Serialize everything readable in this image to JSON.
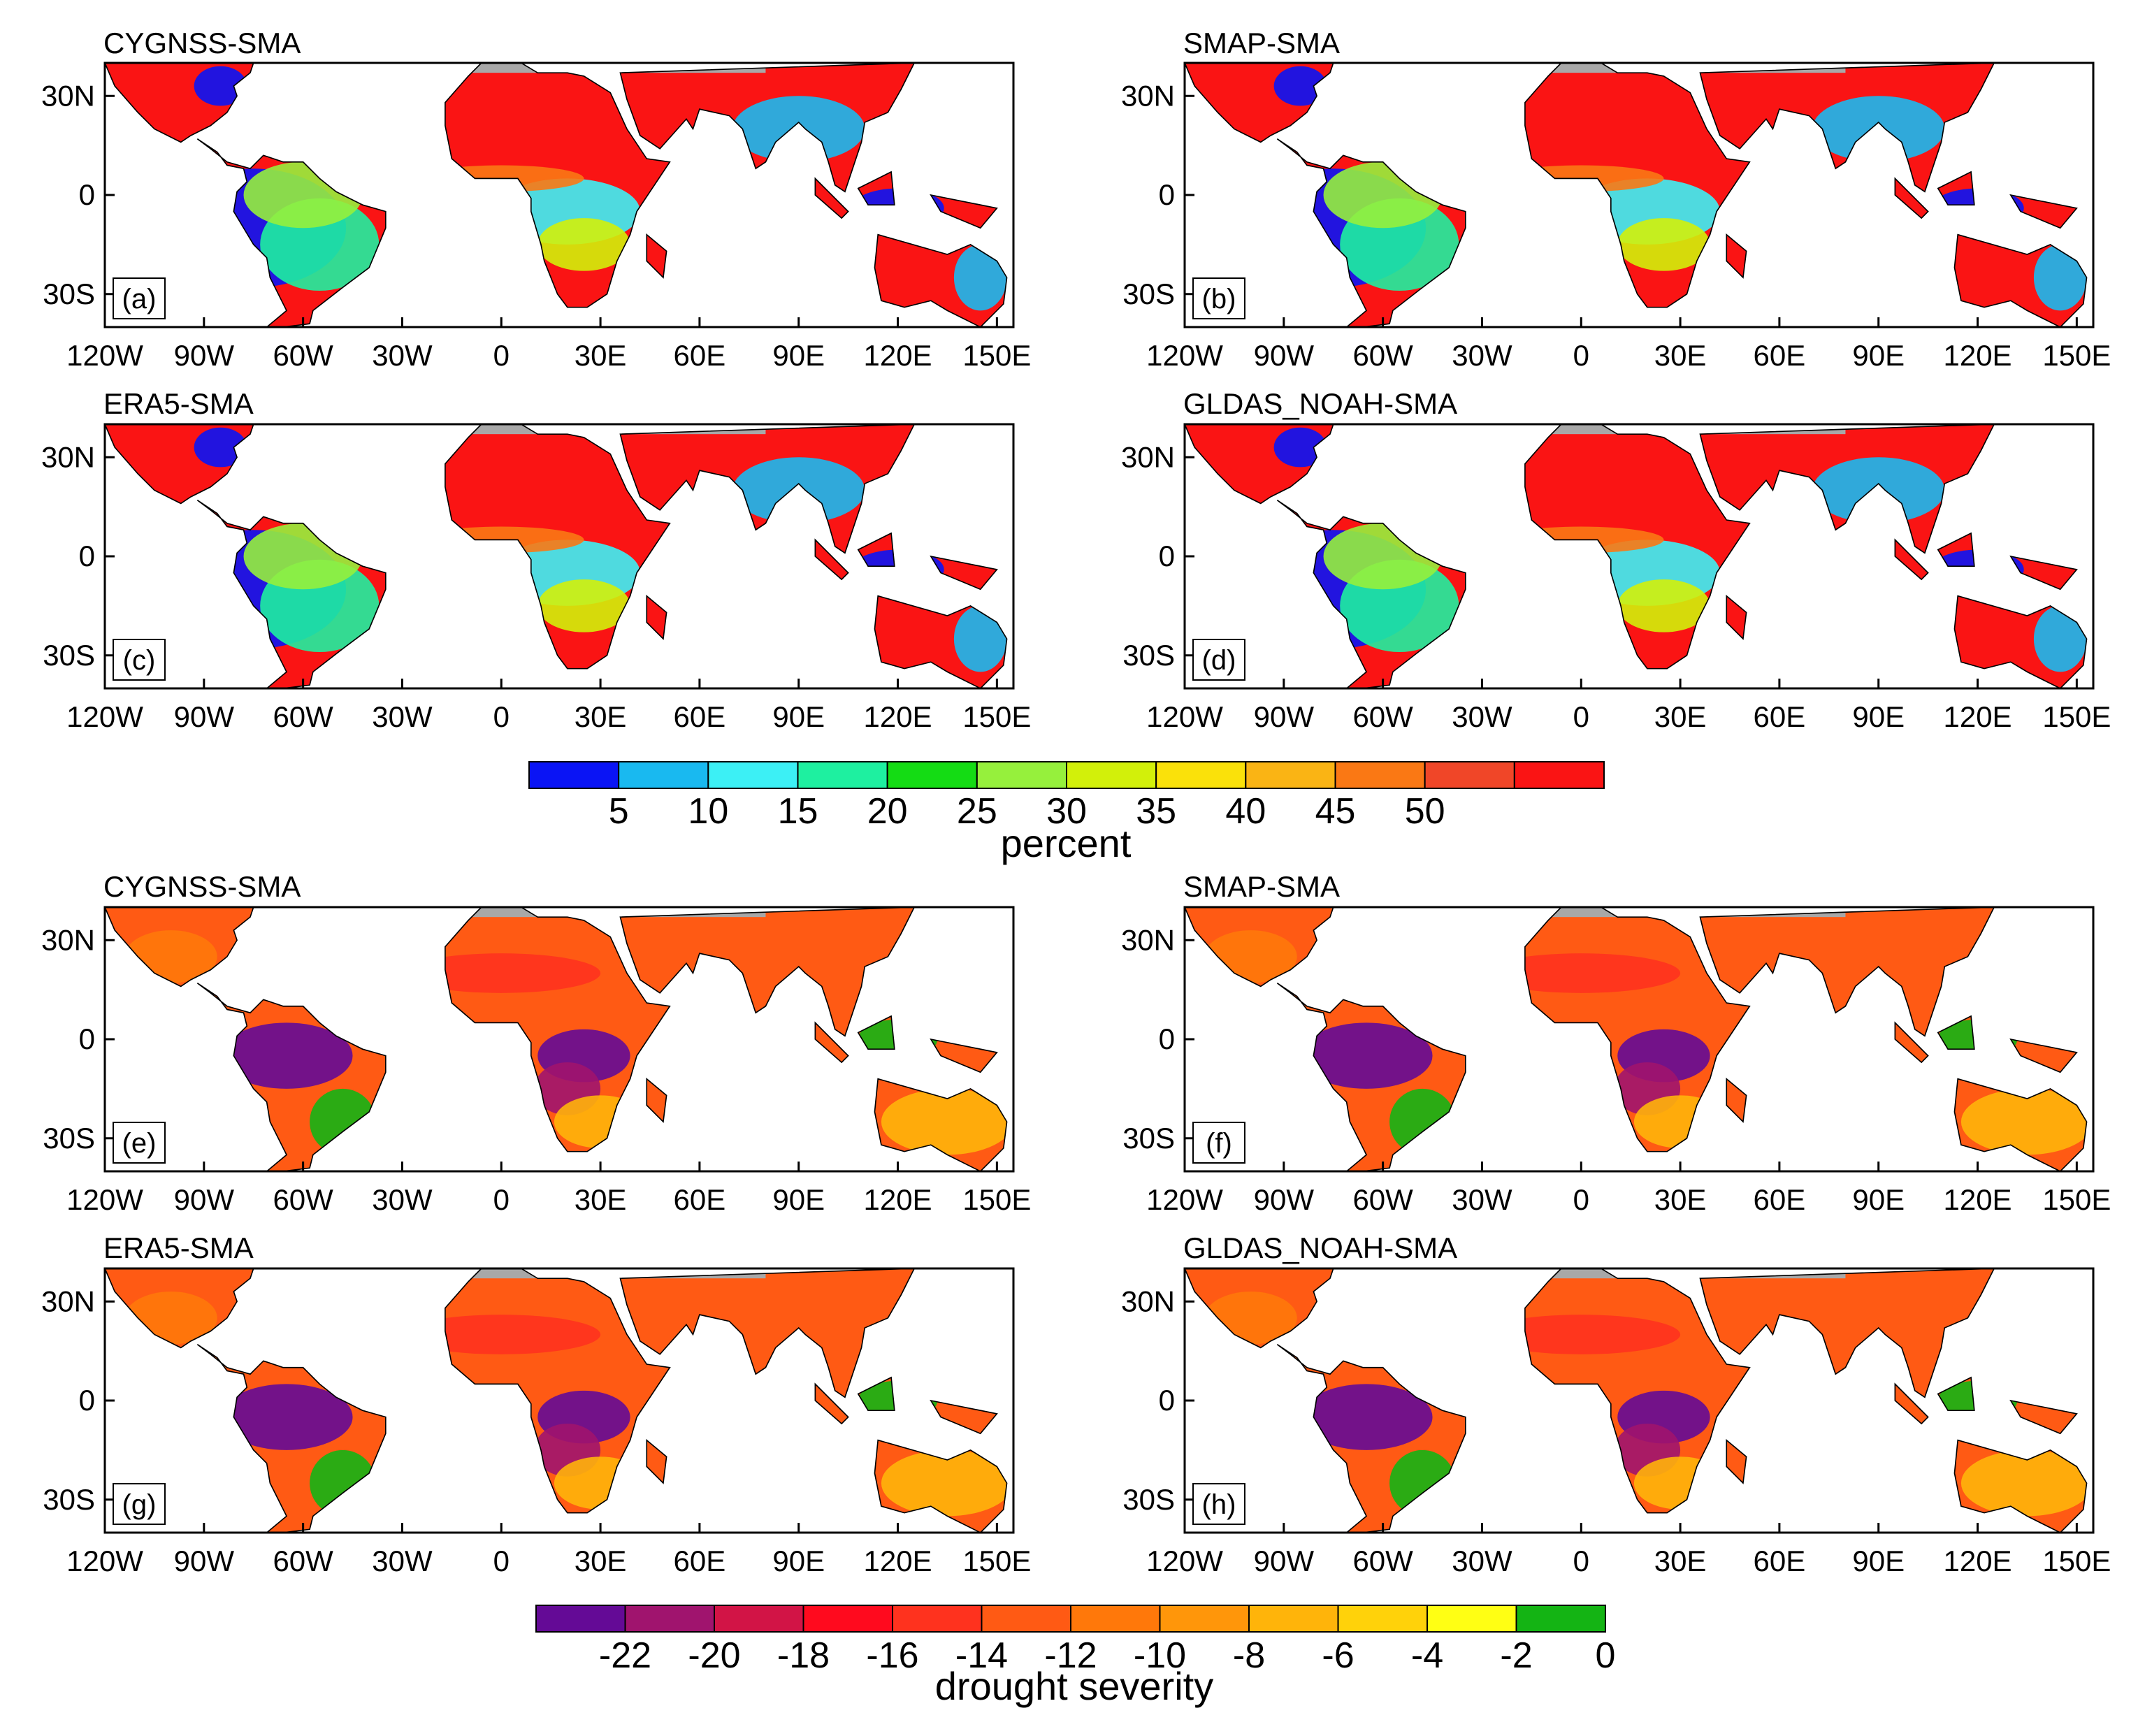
{
  "figure": {
    "top_colorbar": {
      "title": "percent",
      "labels": [
        "5",
        "10",
        "15",
        "20",
        "25",
        "30",
        "35",
        "40",
        "45",
        "50"
      ],
      "colors": [
        "#0a14f5",
        "#19b9f0",
        "#3cf0f5",
        "#1ef0a0",
        "#14dc14",
        "#96f03c",
        "#d2f00a",
        "#fae10a",
        "#fab414",
        "#fa7814",
        "#f04628",
        "#fa1414"
      ]
    },
    "bottom_colorbar": {
      "title": "drought severity",
      "labels": [
        "-22",
        "-20",
        "-18",
        "-16",
        "-14",
        "-12",
        "-10",
        "-8",
        "-6",
        "-4",
        "-2",
        "0"
      ],
      "colors": [
        "#640a96",
        "#a0146e",
        "#d21446",
        "#ff0a1e",
        "#ff321e",
        "#ff5a14",
        "#ff780a",
        "#ff960a",
        "#ffb40a",
        "#ffd20a",
        "#ffff14",
        "#14b414"
      ]
    },
    "axes": {
      "lat_ticks": [
        "30N",
        "0",
        "30S"
      ],
      "lon_ticks": [
        "120W",
        "90W",
        "60W",
        "30W",
        "0",
        "30E",
        "60E",
        "90E",
        "120E",
        "150E"
      ],
      "lon_range": "120W–155E",
      "lat_range": "40S–40N"
    },
    "panels": [
      {
        "id": "a",
        "title": "CYGNSS-SMA",
        "label": "(a)",
        "metric": "percent"
      },
      {
        "id": "b",
        "title": "SMAP-SMA",
        "label": "(b)",
        "metric": "percent"
      },
      {
        "id": "c",
        "title": "ERA5-SMA",
        "label": "(c)",
        "metric": "percent"
      },
      {
        "id": "d",
        "title": "GLDAS_NOAH-SMA",
        "label": "(d)",
        "metric": "percent"
      },
      {
        "id": "e",
        "title": "CYGNSS-SMA",
        "label": "(e)",
        "metric": "drought severity"
      },
      {
        "id": "f",
        "title": "SMAP-SMA",
        "label": "(f)",
        "metric": "drought severity"
      },
      {
        "id": "g",
        "title": "ERA5-SMA",
        "label": "(g)",
        "metric": "drought severity"
      },
      {
        "id": "h",
        "title": "GLDAS_NOAH-SMA",
        "label": "(h)",
        "metric": "drought severity"
      }
    ]
  }
}
